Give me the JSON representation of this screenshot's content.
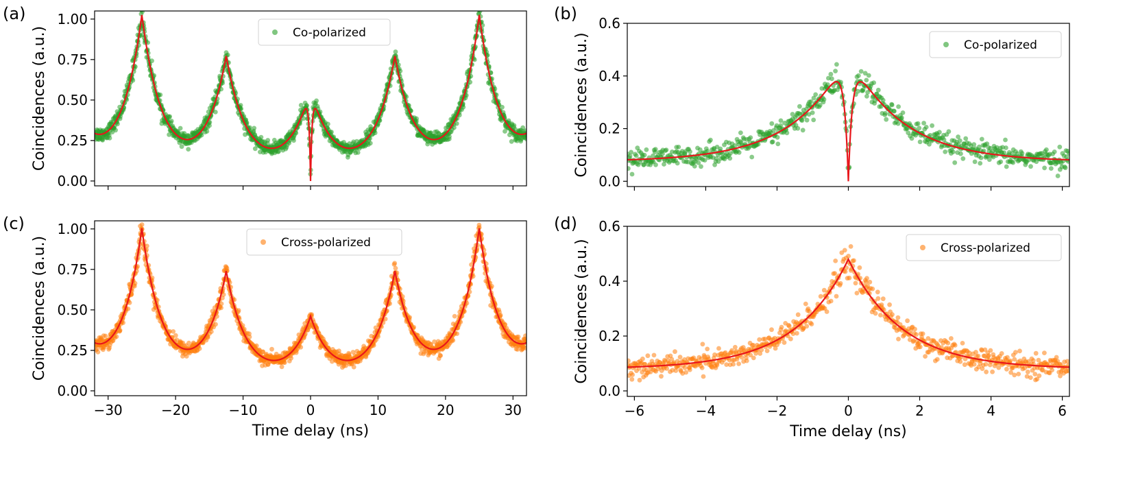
{
  "figure": {
    "xlabel": "Time delay (ns)",
    "ylabel": "Coincidences (a.u.)",
    "colors": {
      "co": "#2ca02c",
      "cross": "#ff7f0e",
      "fit": "#e8161b"
    }
  },
  "chart_data": [
    {
      "id": "a",
      "type": "scatter",
      "panel_label": "(a)",
      "xlim": [
        -32,
        32
      ],
      "ylim": [
        -0.03,
        1.05
      ],
      "xticks": [
        -30,
        -20,
        -10,
        0,
        10,
        20,
        30
      ],
      "yticks": [
        0.0,
        0.25,
        0.5,
        0.75,
        1.0
      ],
      "ytick_labels": [
        "0.00",
        "0.25",
        "0.50",
        "0.75",
        "1.00"
      ],
      "show_xtick_labels": false,
      "xlabel": "",
      "ylabel": "Coincidences (a.u.)",
      "legend": {
        "label": "Co-polarized",
        "position": "top-center"
      },
      "fit": {
        "baseline": 0.05,
        "tau": 3.0,
        "dip_width": 0.25,
        "peaks": [
          {
            "t": -25,
            "a": 0.95
          },
          {
            "t": -12.5,
            "a": 0.7
          },
          {
            "t": 0,
            "a": 0.51
          },
          {
            "t": 12.5,
            "a": 0.7
          },
          {
            "t": 25,
            "a": 0.95
          }
        ],
        "period_extension": 37.5
      },
      "series": [
        {
          "kind": "scatter",
          "name": "Co-polarized",
          "color": "#2ca02c"
        },
        {
          "kind": "line",
          "color": "#e8161b"
        }
      ]
    },
    {
      "id": "b",
      "type": "scatter",
      "panel_label": "(b)",
      "xlim": [
        -6.2,
        6.2
      ],
      "ylim": [
        -0.02,
        0.6
      ],
      "xticks": [
        -6,
        -4,
        -2,
        0,
        2,
        4,
        6
      ],
      "yticks": [
        0.0,
        0.2,
        0.4,
        0.6
      ],
      "ytick_labels": [
        "0.0",
        "0.2",
        "0.4",
        "0.6"
      ],
      "show_xtick_labels": false,
      "xlabel": "",
      "ylabel": "Coincidences (a.u.)",
      "legend": {
        "label": "Co-polarized",
        "position": "top-right"
      },
      "fit": {
        "baseline": 0.075,
        "tau": 1.5,
        "dip_width": 0.12,
        "peaks": [
          {
            "t": 0,
            "a": 0.41
          }
        ]
      },
      "series": [
        {
          "kind": "scatter",
          "name": "Co-polarized",
          "color": "#2ca02c"
        },
        {
          "kind": "line",
          "color": "#e8161b"
        }
      ]
    },
    {
      "id": "c",
      "type": "scatter",
      "panel_label": "(c)",
      "xlim": [
        -32,
        32
      ],
      "ylim": [
        -0.03,
        1.05
      ],
      "xticks": [
        -30,
        -20,
        -10,
        0,
        10,
        20,
        30
      ],
      "xtick_labels": [
        "−30",
        "−20",
        "−10",
        "0",
        "10",
        "20",
        "30"
      ],
      "yticks": [
        0.0,
        0.25,
        0.5,
        0.75,
        1.0
      ],
      "ytick_labels": [
        "0.00",
        "0.25",
        "0.50",
        "0.75",
        "1.00"
      ],
      "show_xtick_labels": true,
      "xlabel": "Time delay (ns)",
      "ylabel": "Coincidences (a.u.)",
      "legend": {
        "label": "Cross-polarized",
        "position": "top-center"
      },
      "fit": {
        "baseline": 0.06,
        "tau": 3.0,
        "dip_width": 0,
        "peaks": [
          {
            "t": -25,
            "a": 0.92
          },
          {
            "t": -12.5,
            "a": 0.66
          },
          {
            "t": 0,
            "a": 0.38
          },
          {
            "t": 12.5,
            "a": 0.66
          },
          {
            "t": 25,
            "a": 0.92
          }
        ],
        "period_extension": 37.5
      },
      "series": [
        {
          "kind": "scatter",
          "name": "Cross-polarized",
          "color": "#ff7f0e"
        },
        {
          "kind": "line",
          "color": "#e8161b"
        }
      ]
    },
    {
      "id": "d",
      "type": "scatter",
      "panel_label": "(d)",
      "xlim": [
        -6.2,
        6.2
      ],
      "ylim": [
        -0.02,
        0.6
      ],
      "xticks": [
        -6,
        -4,
        -2,
        0,
        2,
        4,
        6
      ],
      "xtick_labels": [
        "−6",
        "−4",
        "−2",
        "0",
        "2",
        "4",
        "6"
      ],
      "yticks": [
        0.0,
        0.2,
        0.4,
        0.6
      ],
      "ytick_labels": [
        "0.0",
        "0.2",
        "0.4",
        "0.6"
      ],
      "show_xtick_labels": true,
      "xlabel": "Time delay (ns)",
      "ylabel": "Coincidences (a.u.)",
      "legend": {
        "label": "Cross-polarized",
        "position": "top-right"
      },
      "fit": {
        "baseline": 0.08,
        "tau": 1.5,
        "dip_width": 0,
        "peaks": [
          {
            "t": 0,
            "a": 0.4
          }
        ]
      },
      "series": [
        {
          "kind": "scatter",
          "name": "Cross-polarized",
          "color": "#ff7f0e"
        },
        {
          "kind": "line",
          "color": "#e8161b"
        }
      ]
    }
  ]
}
